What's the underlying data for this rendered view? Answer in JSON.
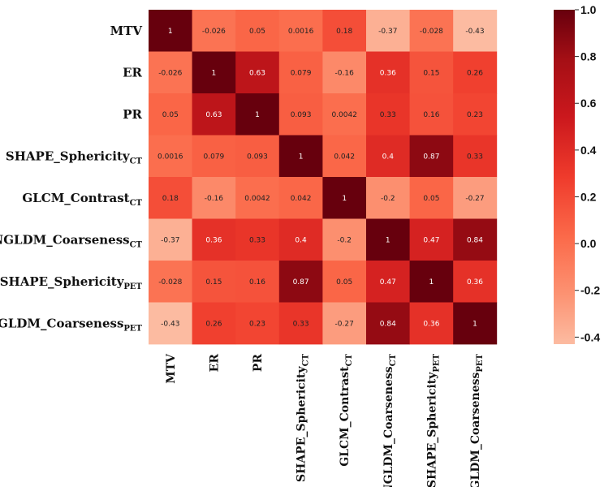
{
  "chart_data": {
    "type": "heatmap",
    "title": "",
    "xlabel": "",
    "ylabel": "",
    "labels": [
      {
        "main": "MTV",
        "sub": ""
      },
      {
        "main": "ER",
        "sub": ""
      },
      {
        "main": "PR",
        "sub": ""
      },
      {
        "main": "SHAPE_Sphericity",
        "sub": "CT"
      },
      {
        "main": "GLCM_Contrast",
        "sub": "CT"
      },
      {
        "main": "NGLDM_Coarseness",
        "sub": "CT"
      },
      {
        "main": "SHAPE_Sphericity",
        "sub": "PET"
      },
      {
        "main": "NGLDM_Coarseness",
        "sub": "PET"
      }
    ],
    "matrix": [
      [
        "1",
        "-0.026",
        "0.05",
        "0.0016",
        "0.18",
        "-0.37",
        "-0.028",
        "-0.43"
      ],
      [
        "-0.026",
        "1",
        "0.63",
        "0.079",
        "-0.16",
        "0.36",
        "0.15",
        "0.26"
      ],
      [
        "0.05",
        "0.63",
        "1",
        "0.093",
        "0.0042",
        "0.33",
        "0.16",
        "0.23"
      ],
      [
        "0.0016",
        "0.079",
        "0.093",
        "1",
        "0.042",
        "0.4",
        "0.87",
        "0.33"
      ],
      [
        "0.18",
        "-0.16",
        "0.0042",
        "0.042",
        "1",
        "-0.2",
        "0.05",
        "-0.27"
      ],
      [
        "-0.37",
        "0.36",
        "0.33",
        "0.4",
        "-0.2",
        "1",
        "0.47",
        "0.84"
      ],
      [
        "-0.028",
        "0.15",
        "0.16",
        "0.87",
        "0.05",
        "0.47",
        "1",
        "0.36"
      ],
      [
        "-0.43",
        "0.26",
        "0.23",
        "0.33",
        "-0.27",
        "0.84",
        "0.36",
        "1"
      ]
    ],
    "colorbar": {
      "range": [
        -0.43,
        1.0
      ],
      "ticks": [
        "1.0",
        "0.8",
        "0.6",
        "0.4",
        "0.2",
        "0.0",
        "-0.2",
        "-0.4"
      ],
      "colormap": "Reds",
      "low_color": "#fcbba1",
      "high_color": "#67000d"
    }
  }
}
